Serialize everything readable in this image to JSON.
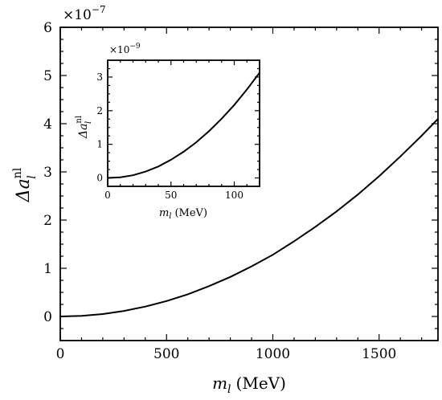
{
  "chart_data": [
    {
      "type": "line",
      "title": "",
      "xlabel_main": "m",
      "xlabel_sub": "l",
      "xlabel_unit": "(MeV)",
      "ylabel_main": "Δa",
      "ylabel_sup": "nl",
      "ylabel_sub": "l",
      "scale_base": "×10",
      "scale_exp": "−7",
      "xlim": [
        0,
        1777
      ],
      "ylim": [
        -0.5,
        6
      ],
      "xticks": [
        0,
        500,
        1000,
        1500
      ],
      "yticks": [
        0,
        1,
        2,
        3,
        4,
        5,
        6
      ],
      "series": [
        {
          "x": [
            0,
            100,
            200,
            300,
            400,
            500,
            600,
            700,
            800,
            900,
            1000,
            1100,
            1200,
            1300,
            1400,
            1500,
            1600,
            1700,
            1777
          ],
          "y": [
            0,
            0.013,
            0.05,
            0.115,
            0.205,
            0.32,
            0.46,
            0.63,
            0.82,
            1.04,
            1.28,
            1.56,
            1.86,
            2.18,
            2.53,
            2.91,
            3.32,
            3.75,
            4.1
          ]
        }
      ]
    },
    {
      "type": "line",
      "title": "",
      "xlabel_main": "m",
      "xlabel_sub": "l",
      "xlabel_unit": "(MeV)",
      "ylabel_main": "Δa",
      "ylabel_sup": "nl",
      "ylabel_sub": "l",
      "scale_base": "×10",
      "scale_exp": "−9",
      "xlim": [
        0,
        120
      ],
      "ylim": [
        -0.25,
        3.5
      ],
      "xticks": [
        0,
        50,
        100
      ],
      "yticks": [
        0,
        1,
        2,
        3
      ],
      "series": [
        {
          "x": [
            0,
            10,
            20,
            30,
            40,
            50,
            60,
            70,
            80,
            90,
            100,
            110,
            120
          ],
          "y": [
            0,
            0.02,
            0.08,
            0.19,
            0.34,
            0.54,
            0.78,
            1.06,
            1.39,
            1.76,
            2.17,
            2.63,
            3.13
          ]
        }
      ]
    }
  ]
}
